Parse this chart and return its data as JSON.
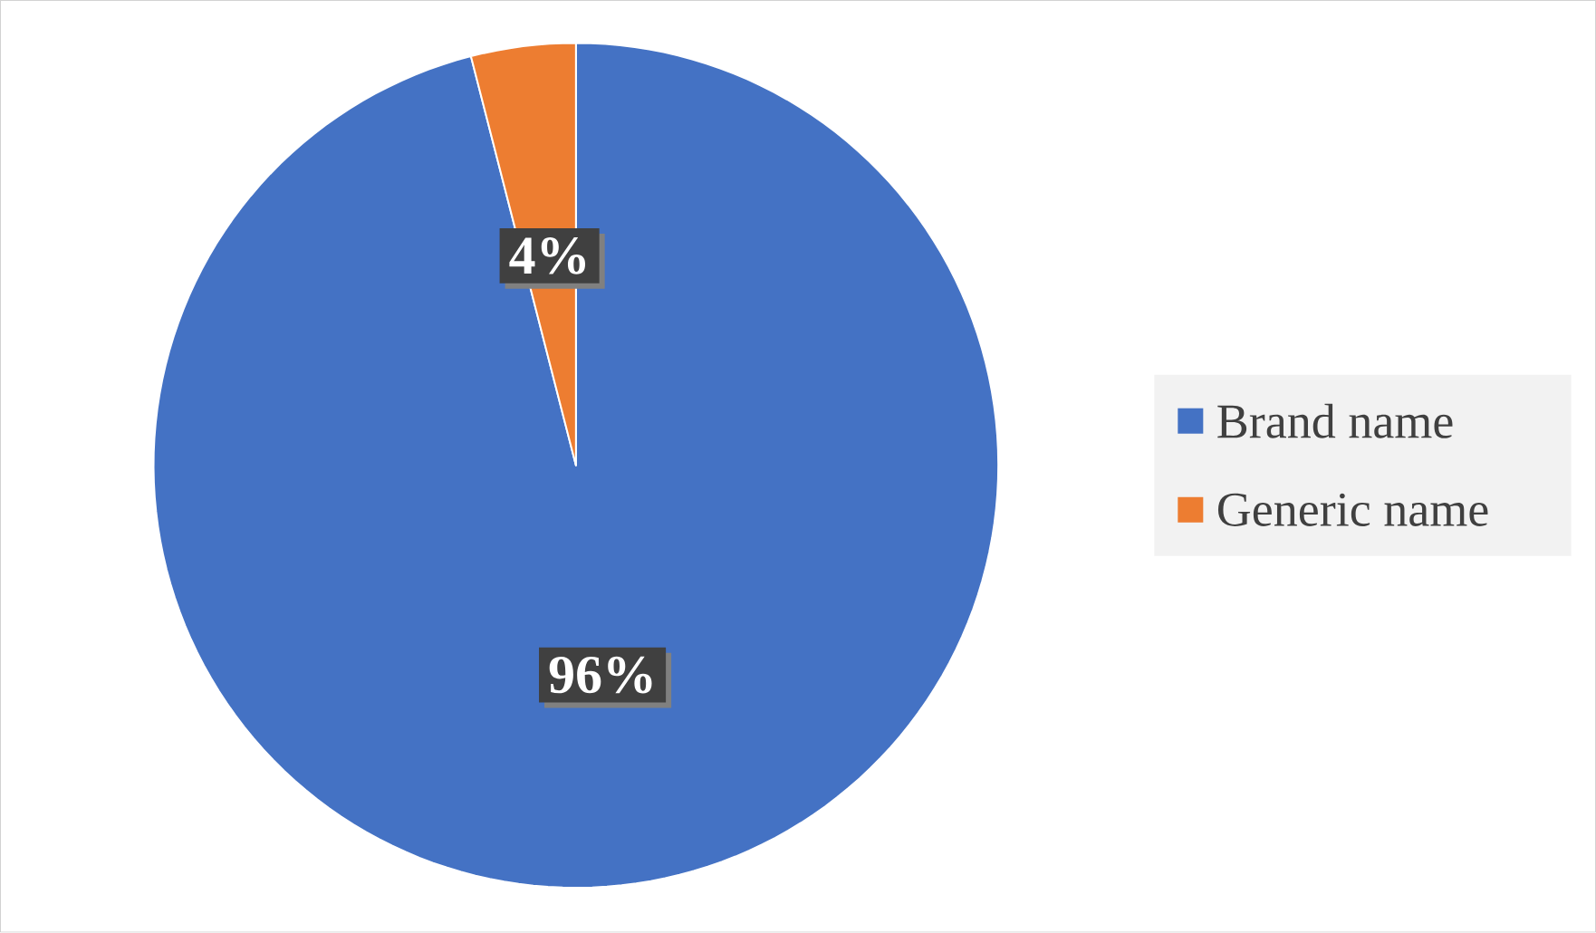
{
  "chart_data": {
    "type": "pie",
    "categories": [
      "Brand name",
      "Generic name"
    ],
    "values": [
      96,
      4
    ],
    "colors": [
      "#4472c4",
      "#ed7d31"
    ],
    "value_labels": [
      "96%",
      "4%"
    ],
    "legend": "right"
  }
}
